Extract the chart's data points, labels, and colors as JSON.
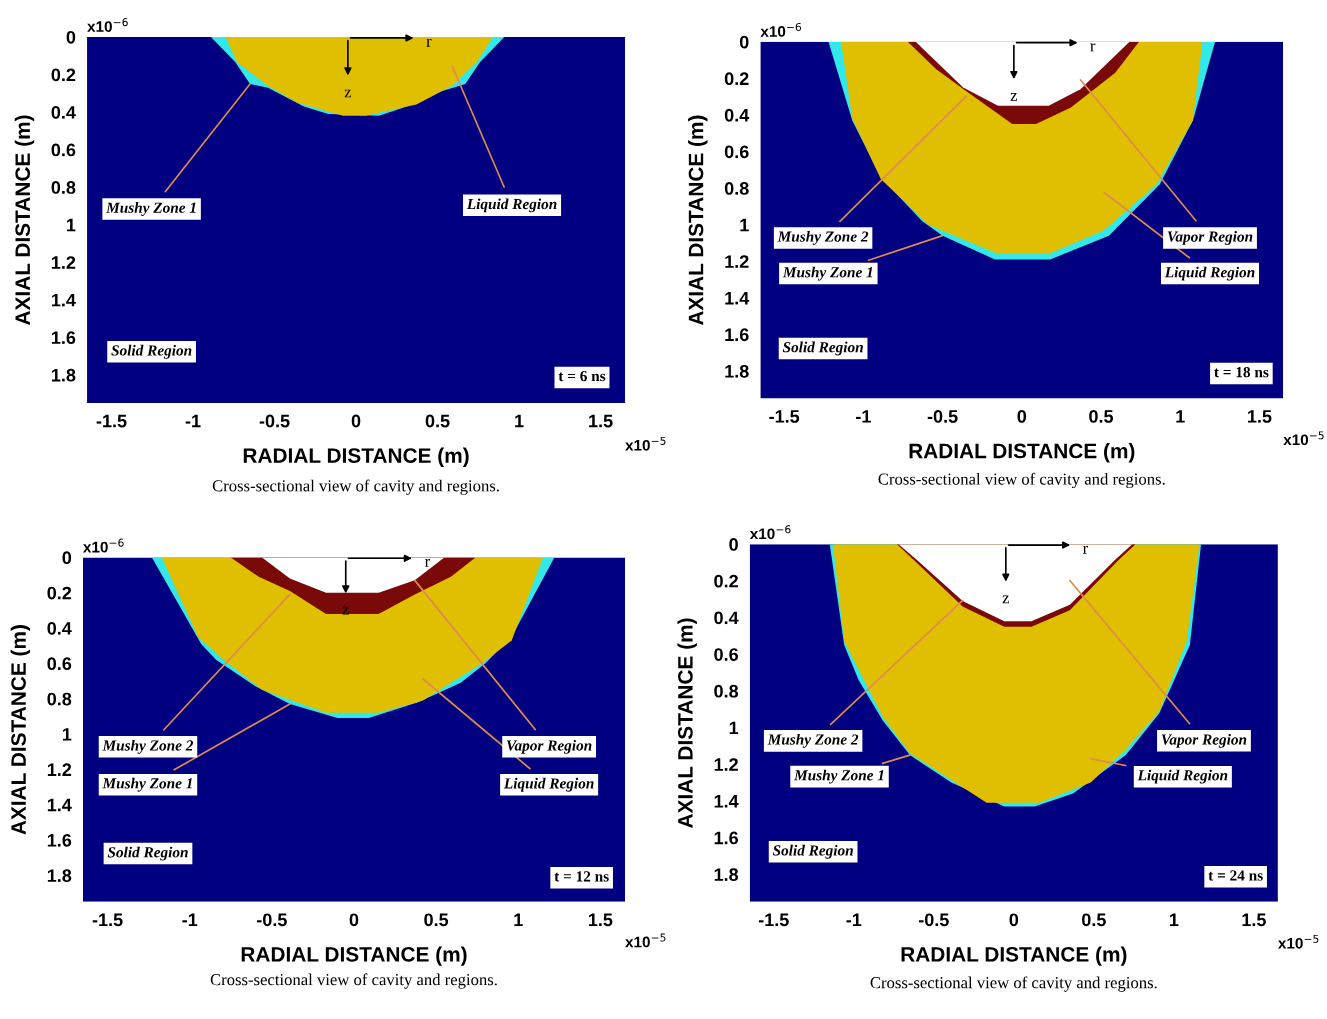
{
  "chart_data": [
    {
      "type": "area",
      "xlabel": "RADIAL DISTANCE (m)",
      "ylabel": "AXIAL DISTANCE (m)",
      "xlim": [
        -1.65,
        1.65
      ],
      "ylim": [
        1.95,
        0
      ],
      "xticks": [
        -1.5,
        -1,
        -0.5,
        0,
        0.5,
        1,
        1.5
      ],
      "yticks": [
        0,
        0.2,
        0.4,
        0.6,
        0.8,
        1,
        1.2,
        1.4,
        1.6,
        1.8
      ],
      "bands": [
        {
          "axis": "y",
          "from": 0,
          "to": 1.95,
          "label": "Solid Region",
          "color": "#000080"
        }
      ],
      "annotations": [
        "t = 6 ns",
        "Cross-sectional view of cavity and regions.",
        "x10$^{−6}$",
        "x10$^{−5}$",
        "r",
        "z"
      ],
      "series": [
        {
          "name": "Mushy Zone 1",
          "color": "#33e8e8",
          "x": [
            -0.89,
            -0.74,
            -0.65,
            -0.54,
            -0.32,
            -0.17,
            0.14,
            0.28,
            0.52,
            0.67,
            0.76,
            0.91
          ],
          "values": [
            0,
            0.135,
            0.25,
            0.27,
            0.37,
            0.41,
            0.42,
            0.38,
            0.29,
            0.25,
            0.135,
            0
          ]
        },
        {
          "name": "Liquid Region",
          "color": "#e0bf00",
          "x": [
            -0.8,
            -0.73,
            -0.54,
            -0.36,
            -0.08,
            0.06,
            0.37,
            0.59,
            0.74,
            0.84
          ],
          "values": [
            0,
            0.135,
            0.26,
            0.35,
            0.42,
            0.42,
            0.36,
            0.26,
            0.135,
            0
          ]
        }
      ]
    },
    {
      "type": "area",
      "xlabel": "RADIAL DISTANCE (m)",
      "ylabel": "AXIAL DISTANCE (m)",
      "xlim": [
        -1.65,
        1.65
      ],
      "ylim": [
        1.95,
        0
      ],
      "xticks": [
        -1.5,
        -1,
        -0.5,
        0,
        0.5,
        1,
        1.5
      ],
      "yticks": [
        0,
        0.2,
        0.4,
        0.6,
        0.8,
        1,
        1.2,
        1.4,
        1.6,
        1.8
      ],
      "bands": [
        {
          "axis": "y",
          "from": 0,
          "to": 1.95,
          "label": "Solid Region",
          "color": "#000080"
        }
      ],
      "annotations": [
        "t = 18 ns",
        "Cross-sectional view of cavity and regions.",
        "x10$^{−6}$",
        "x10$^{−5}$",
        "r",
        "z"
      ],
      "series": [
        {
          "name": "Mushy Zone 1",
          "color": "#33e8e8",
          "x": [
            -1.22,
            -1.07,
            -0.89,
            -0.63,
            -0.5,
            -0.17,
            0.18,
            0.55,
            0.87,
            1.08,
            1.22
          ],
          "values": [
            0,
            0.43,
            0.74,
            0.98,
            1.06,
            1.19,
            1.19,
            1.06,
            0.78,
            0.43,
            0
          ]
        },
        {
          "name": "Liquid Region",
          "color": "#e0bf00",
          "x": [
            -1.14,
            -1.07,
            -0.89,
            -0.59,
            -0.15,
            0.17,
            0.52,
            0.85,
            1.08,
            1.14
          ],
          "values": [
            0,
            0.42,
            0.75,
            1.0,
            1.16,
            1.16,
            1.03,
            0.78,
            0.43,
            0
          ]
        },
        {
          "name": "Mushy Zone 2",
          "color": "#7a0a0a",
          "x": [
            -0.72,
            -0.54,
            -0.35,
            -0.06,
            0.09,
            0.31,
            0.59,
            0.74
          ],
          "values": [
            0,
            0.15,
            0.27,
            0.45,
            0.45,
            0.36,
            0.17,
            0
          ]
        },
        {
          "name": "Vapor Region",
          "color": "#ffffff",
          "x": [
            -0.67,
            -0.37,
            -0.15,
            0.17,
            0.37,
            0.68
          ],
          "values": [
            0,
            0.25,
            0.35,
            0.35,
            0.26,
            0
          ]
        }
      ]
    },
    {
      "type": "area",
      "xlabel": "RADIAL DISTANCE (m)",
      "ylabel": "AXIAL DISTANCE (m)",
      "xlim": [
        -1.65,
        1.65
      ],
      "ylim": [
        1.95,
        0
      ],
      "xticks": [
        -1.5,
        -1,
        -0.5,
        0,
        0.5,
        1,
        1.5
      ],
      "yticks": [
        0,
        0.2,
        0.4,
        0.6,
        0.8,
        1,
        1.2,
        1.4,
        1.6,
        1.8
      ],
      "bands": [
        {
          "axis": "y",
          "from": 0,
          "to": 1.95,
          "label": "Solid Region",
          "color": "#000080"
        }
      ],
      "annotations": [
        "t = 12 ns",
        "Cross-sectional view of cavity and regions.",
        "x10$^{−6}$",
        "x10$^{−5}$",
        "r",
        "z"
      ],
      "series": [
        {
          "name": "Mushy Zone 1",
          "color": "#33e8e8",
          "x": [
            -1.23,
            -0.93,
            -0.84,
            -0.6,
            -0.39,
            -0.1,
            0.09,
            0.39,
            0.65,
            0.8,
            0.96,
            1.22
          ],
          "values": [
            0,
            0.49,
            0.58,
            0.73,
            0.83,
            0.91,
            0.91,
            0.82,
            0.71,
            0.6,
            0.45,
            0
          ]
        },
        {
          "name": "Liquid Region",
          "color": "#e0bf00",
          "x": [
            -1.17,
            -0.95,
            -0.82,
            -0.56,
            -0.17,
            0.15,
            0.42,
            0.78,
            0.96,
            1.15
          ],
          "values": [
            0,
            0.45,
            0.56,
            0.75,
            0.88,
            0.88,
            0.81,
            0.6,
            0.47,
            0
          ]
        },
        {
          "name": "Mushy Zone 2",
          "color": "#7a0a0a",
          "x": [
            -0.75,
            -0.58,
            -0.39,
            -0.17,
            0.15,
            0.37,
            0.59,
            0.74
          ],
          "values": [
            0,
            0.11,
            0.19,
            0.32,
            0.32,
            0.21,
            0.11,
            0
          ]
        },
        {
          "name": "Vapor Region",
          "color": "#ffffff",
          "x": [
            -0.56,
            -0.39,
            -0.17,
            0.15,
            0.37,
            0.55
          ],
          "values": [
            0,
            0.12,
            0.2,
            0.2,
            0.13,
            0
          ]
        }
      ]
    },
    {
      "type": "area",
      "xlabel": "RADIAL DISTANCE (m)",
      "ylabel": "AXIAL DISTANCE (m)",
      "xlim": [
        -1.65,
        1.65
      ],
      "ylim": [
        1.95,
        0
      ],
      "xticks": [
        -1.5,
        -1,
        -0.5,
        0,
        0.5,
        1,
        1.5
      ],
      "yticks": [
        0,
        0.2,
        0.4,
        0.6,
        0.8,
        1,
        1.2,
        1.4,
        1.6,
        1.8
      ],
      "bands": [
        {
          "axis": "y",
          "from": 0,
          "to": 1.95,
          "label": "Solid Region",
          "color": "#000080"
        }
      ],
      "annotations": [
        "t = 24 ns",
        "Cross-sectional view of cavity and regions.",
        "x10$^{−6}$",
        "x10$^{−5}$",
        "r",
        "z"
      ],
      "series": [
        {
          "name": "Mushy Zone 1",
          "color": "#33e8e8",
          "x": [
            -1.15,
            -1.06,
            -0.97,
            -0.82,
            -0.65,
            -0.39,
            -0.06,
            0.13,
            0.37,
            0.7,
            0.91,
            1.1,
            1.17
          ],
          "values": [
            0,
            0.55,
            0.74,
            0.96,
            1.15,
            1.3,
            1.43,
            1.43,
            1.36,
            1.15,
            0.92,
            0.55,
            0
          ]
        },
        {
          "name": "Liquid Region",
          "color": "#e0bf00",
          "x": [
            -1.13,
            -1.06,
            -0.82,
            -0.65,
            -0.17,
            0.16,
            0.48,
            0.7,
            0.91,
            1.08,
            1.16
          ],
          "values": [
            0,
            0.53,
            0.94,
            1.14,
            1.41,
            1.41,
            1.3,
            1.12,
            0.91,
            0.53,
            0
          ]
        },
        {
          "name": "Mushy Zone 2",
          "color": "#7a0a0a",
          "x": [
            -0.73,
            -0.62,
            -0.32,
            -0.06,
            0.11,
            0.35,
            0.65,
            0.76
          ],
          "values": [
            0,
            0.09,
            0.34,
            0.45,
            0.45,
            0.36,
            0.09,
            0
          ]
        },
        {
          "name": "Vapor Region",
          "color": "#ffffff",
          "x": [
            -0.72,
            -0.6,
            -0.32,
            -0.06,
            0.11,
            0.35,
            0.64,
            0.74
          ],
          "values": [
            0,
            0.09,
            0.31,
            0.42,
            0.42,
            0.33,
            0.08,
            0
          ]
        }
      ]
    }
  ]
}
